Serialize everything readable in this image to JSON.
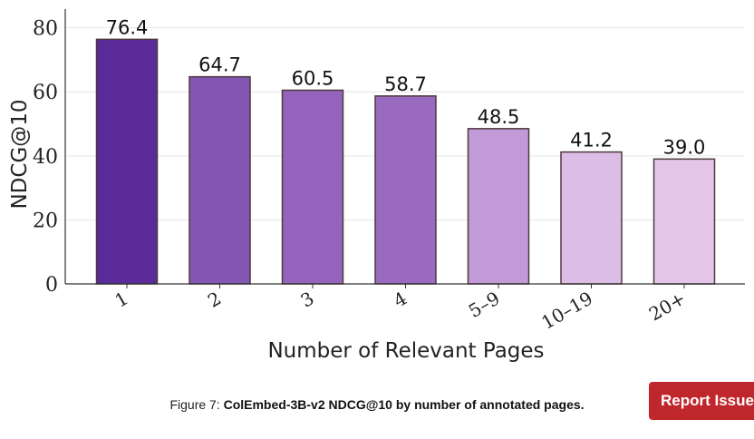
{
  "chart_data": {
    "type": "bar",
    "categories": [
      "1",
      "2",
      "3",
      "4",
      "5–9",
      "10–19",
      "20+"
    ],
    "values": [
      76.4,
      64.7,
      60.5,
      58.7,
      48.5,
      41.2,
      39.0
    ],
    "value_labels": [
      "76.4",
      "64.7",
      "60.5",
      "58.7",
      "48.5",
      "41.2",
      "39.0"
    ],
    "xlabel": "Number of Relevant Pages",
    "ylabel": "NDCG@10",
    "ylim": [
      0,
      85
    ],
    "yticks": [
      0,
      20,
      40,
      60,
      80
    ],
    "grid": true,
    "colors": [
      "#5b2a99",
      "#8456b3",
      "#9464bd",
      "#9a69c0",
      "#c19ad7",
      "#dcbde5",
      "#e5c6ea"
    ],
    "edge_color": "#4d3a3a"
  },
  "caption": {
    "prefix": "Figure 7:",
    "bold": "ColEmbed-3B-v2 NDCG@10 by number of annotated pages."
  },
  "report_button": {
    "label": "Report Issue"
  }
}
